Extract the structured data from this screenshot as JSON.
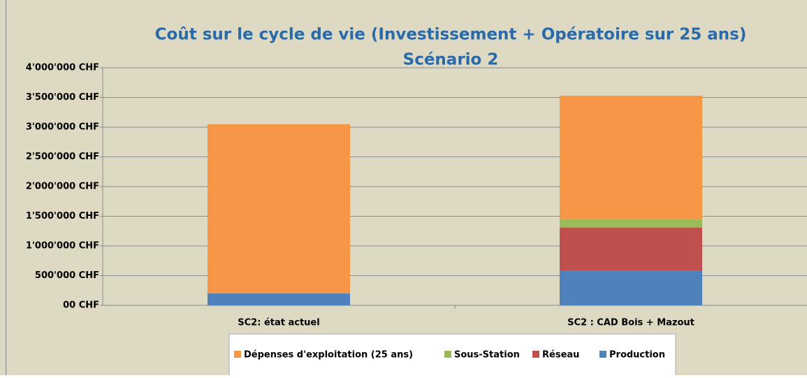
{
  "chart_data": {
    "type": "bar",
    "stacked": true,
    "title": "Coût sur le cycle de vie (Investissement + Opératoire sur 25 ans)",
    "subtitle": "Scénario 2",
    "categories": [
      "SC2: état actuel",
      "SC2 : CAD Bois + Mazout"
    ],
    "series": [
      {
        "name": "Dépenses d'exploitation (25 ans)",
        "color": "#f79646",
        "values": [
          2850000,
          2080000
        ]
      },
      {
        "name": "Sous-Station",
        "color": "#9bbb59",
        "values": [
          0,
          140000
        ]
      },
      {
        "name": "Réseau",
        "color": "#c0504d",
        "values": [
          0,
          730000
        ]
      },
      {
        "name": "Production",
        "color": "#4f81bd",
        "values": [
          200000,
          580000
        ]
      }
    ],
    "ylim": [
      0,
      4000000
    ],
    "yticks": [
      {
        "value": 0,
        "label": "00 CHF"
      },
      {
        "value": 500000,
        "label": "500'000 CHF"
      },
      {
        "value": 1000000,
        "label": "1'000'000 CHF"
      },
      {
        "value": 1500000,
        "label": "1'500'000 CHF"
      },
      {
        "value": 2000000,
        "label": "2'000'000 CHF"
      },
      {
        "value": 2500000,
        "label": "2'500'000 CHF"
      },
      {
        "value": 3000000,
        "label": "3'000'000 CHF"
      },
      {
        "value": 3500000,
        "label": "3'500'000 CHF"
      },
      {
        "value": 4000000,
        "label": "4'000'000 CHF"
      }
    ],
    "grid": true,
    "legend": "bottom"
  }
}
